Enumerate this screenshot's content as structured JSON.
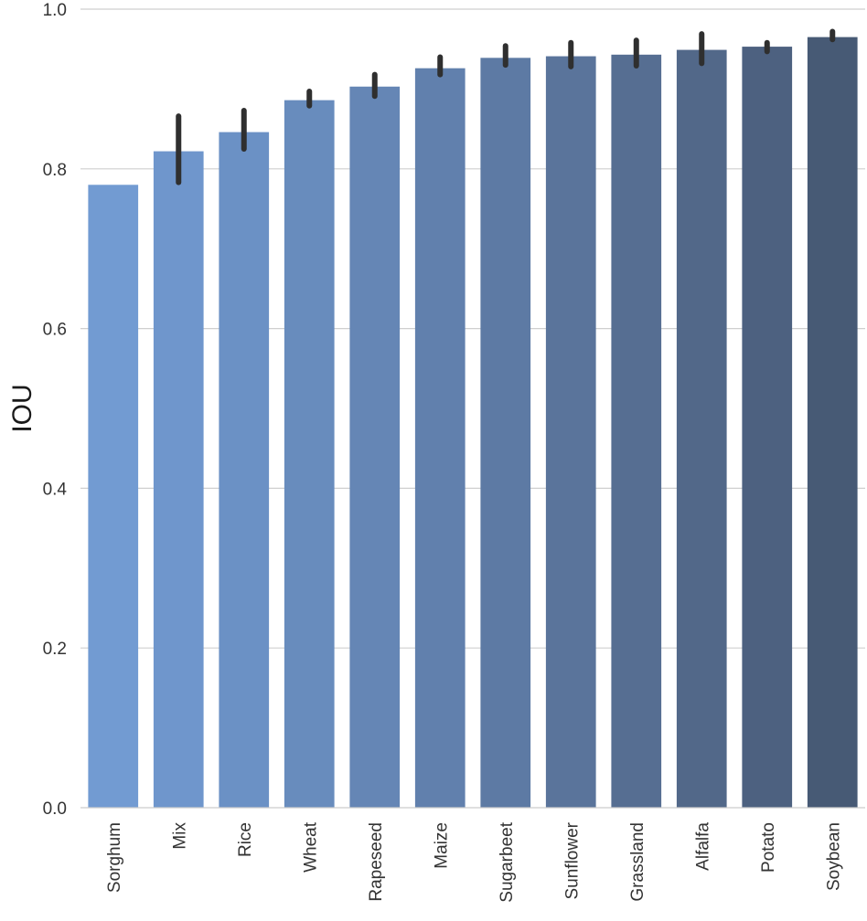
{
  "chart_data": {
    "type": "bar",
    "title": "",
    "xlabel": "",
    "ylabel": "IOU",
    "ylim": [
      0,
      1.0
    ],
    "yticks": [
      0.0,
      0.2,
      0.4,
      0.6,
      0.8,
      1.0
    ],
    "ytick_labels": [
      "0.0",
      "0.2",
      "0.4",
      "0.6",
      "0.8",
      "1.0"
    ],
    "grid": "horizontal",
    "categories": [
      "Sorghum",
      "Mix",
      "Rice",
      "Wheat",
      "Rapeseed",
      "Maize",
      "Sugarbeet",
      "Sunflower",
      "Grassland",
      "Alfalfa",
      "Potato",
      "Soybean"
    ],
    "values": [
      0.78,
      0.822,
      0.846,
      0.886,
      0.903,
      0.926,
      0.939,
      0.941,
      0.943,
      0.949,
      0.953,
      0.965
    ],
    "error_low": [
      null,
      0.783,
      0.825,
      0.879,
      0.891,
      0.918,
      0.93,
      0.928,
      0.929,
      0.932,
      0.947,
      0.962
    ],
    "error_high": [
      null,
      0.866,
      0.873,
      0.897,
      0.918,
      0.94,
      0.954,
      0.958,
      0.961,
      0.969,
      0.958,
      0.972
    ],
    "colors": [
      "#729bd2",
      "#6f96cc",
      "#6b91c5",
      "#688cbd",
      "#6586b5",
      "#6180ad",
      "#5d7aa4",
      "#5a749b",
      "#566e92",
      "#526889",
      "#4d6180",
      "#475a75"
    ]
  }
}
